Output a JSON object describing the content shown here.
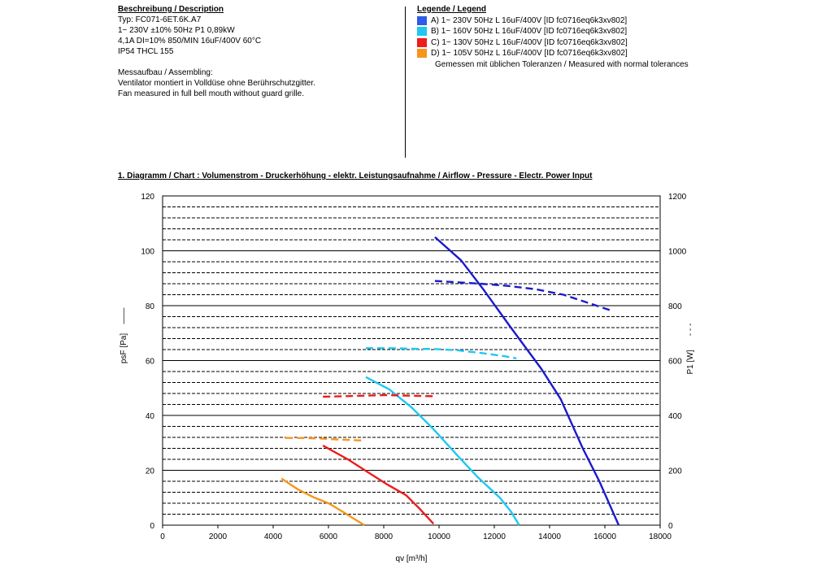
{
  "description": {
    "header": "Beschreibung / Description",
    "lines": [
      "Typ: FC071-6ET.6K.A7",
      "1~ 230V ±10% 50Hz P1 0,89kW",
      "4,1A DI=10% 850/MIN 16uF/400V 60°C",
      "IP54 THCL 155"
    ],
    "assembly_header": "Messaufbau / Assembling:",
    "assembly_lines": [
      "Ventilator montiert in Volldüse ohne Berührschutzgitter.",
      "Fan measured in full bell mouth without guard grille."
    ]
  },
  "legend": {
    "header": "Legende / Legend",
    "items": [
      {
        "label": "A) 1~ 230V 50Hz L 16uF/400V [ID fc0716eq6k3xv802]",
        "color": "#2e5be8"
      },
      {
        "label": "B) 1~ 160V 50Hz L 16uF/400V [ID fc0716eq6k3xv802]",
        "color": "#1ec8f0"
      },
      {
        "label": "C) 1~ 130V 50Hz L 16uF/400V [ID fc0716eq6k3xv802]",
        "color": "#ee1c1c"
      },
      {
        "label": "D) 1~ 105V 50Hz L 16uF/400V [ID fc0716eq6k3xv802]",
        "color": "#f7941d"
      }
    ],
    "note": "Gemessen mit üblichen Toleranzen / Measured with normal tolerances"
  },
  "chart_title": "1. Diagramm / Chart :   Volumenstrom - Druckerhöhung - elektr. Leistungsaufnahme / Airflow - Pressure - Electr. Power Input",
  "chart_data": {
    "type": "line",
    "xlabel": "qv [m³/h]",
    "ylabel": "psF [Pa]",
    "y2label": "P1 [W]",
    "y_marker": "——",
    "y2_marker": "- - -",
    "xlim": [
      0,
      18000
    ],
    "ylim": [
      0,
      120
    ],
    "y2lim": [
      0,
      1200
    ],
    "x_ticks": [
      "0",
      "2000",
      "4000",
      "6000",
      "8000",
      "10000",
      "12000",
      "14000",
      "16000",
      "18000"
    ],
    "y_ticks": [
      "0",
      "20",
      "40",
      "60",
      "80",
      "100",
      "120"
    ],
    "y2_ticks": [
      "0",
      "200",
      "400",
      "600",
      "800",
      "1000",
      "1200"
    ],
    "grid": "horizontal dashed",
    "series": [
      {
        "curve": "A",
        "kind": "pressure",
        "color": "#1a1acc",
        "points": [
          [
            9850,
            105
          ],
          [
            10800,
            96.5
          ],
          [
            11600,
            86
          ],
          [
            12600,
            72
          ],
          [
            13700,
            57
          ],
          [
            14400,
            46
          ],
          [
            15200,
            28
          ],
          [
            15800,
            16
          ],
          [
            16500,
            0
          ]
        ]
      },
      {
        "curve": "A",
        "kind": "power",
        "color": "#1a1acc",
        "points": [
          [
            9850,
            890
          ],
          [
            10700,
            885
          ],
          [
            11500,
            880
          ],
          [
            12500,
            872
          ],
          [
            13500,
            860
          ],
          [
            14500,
            840
          ],
          [
            15400,
            810
          ],
          [
            16300,
            780
          ]
        ]
      },
      {
        "curve": "B",
        "kind": "pressure",
        "color": "#1ec8f0",
        "points": [
          [
            7350,
            54
          ],
          [
            8200,
            49.5
          ],
          [
            9000,
            43
          ],
          [
            9800,
            35
          ],
          [
            10700,
            25
          ],
          [
            11400,
            17.5
          ],
          [
            12200,
            10
          ],
          [
            12600,
            5
          ],
          [
            12900,
            0
          ]
        ]
      },
      {
        "curve": "B",
        "kind": "power",
        "color": "#1ec8f0",
        "points": [
          [
            7350,
            645
          ],
          [
            8200,
            645
          ],
          [
            9000,
            643
          ],
          [
            9800,
            642
          ],
          [
            10600,
            638
          ],
          [
            11500,
            628
          ],
          [
            12300,
            617
          ],
          [
            12800,
            608
          ]
        ]
      },
      {
        "curve": "C",
        "kind": "pressure",
        "color": "#ee1c1c",
        "points": [
          [
            5800,
            29
          ],
          [
            6700,
            24
          ],
          [
            7400,
            19.5
          ],
          [
            8100,
            15
          ],
          [
            8800,
            11
          ],
          [
            9300,
            6
          ],
          [
            9800,
            0.5
          ]
        ]
      },
      {
        "curve": "C",
        "kind": "power",
        "color": "#ee1c1c",
        "points": [
          [
            5800,
            468
          ],
          [
            6500,
            470
          ],
          [
            7300,
            472
          ],
          [
            8100,
            474
          ],
          [
            8900,
            472
          ],
          [
            9800,
            470
          ]
        ]
      },
      {
        "curve": "D",
        "kind": "pressure",
        "color": "#f7941d",
        "points": [
          [
            4300,
            17
          ],
          [
            4900,
            13
          ],
          [
            5500,
            10
          ],
          [
            6000,
            8
          ],
          [
            6500,
            5
          ],
          [
            6900,
            2.5
          ],
          [
            7300,
            0
          ]
        ]
      },
      {
        "curve": "D",
        "kind": "power",
        "color": "#f7941d",
        "points": [
          [
            4450,
            318
          ],
          [
            5000,
            318
          ],
          [
            5700,
            316
          ],
          [
            6400,
            312
          ],
          [
            7300,
            308
          ]
        ]
      }
    ]
  }
}
